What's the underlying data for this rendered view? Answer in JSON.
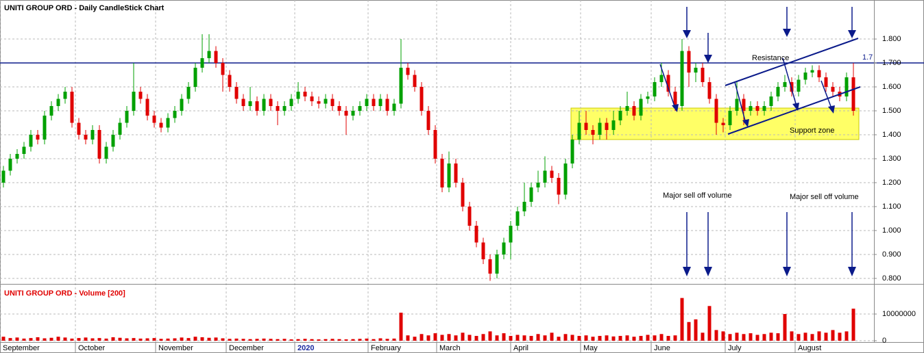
{
  "chart_data": [
    {
      "type": "candlestick",
      "title": "UNITI GROUP ORD - Daily CandleStick Chart",
      "up_color": "#00a000",
      "down_color": "#e00000",
      "open": [
        1.2,
        1.25,
        1.3,
        1.32,
        1.35,
        1.4,
        1.38,
        1.48,
        1.52,
        1.55,
        1.58,
        1.45,
        1.4,
        1.38,
        1.42,
        1.3,
        1.35,
        1.4,
        1.45,
        1.5,
        1.58,
        1.55,
        1.48,
        1.45,
        1.43,
        1.47,
        1.5,
        1.55,
        1.6,
        1.68,
        1.72,
        1.75,
        1.7,
        1.65,
        1.6,
        1.55,
        1.52,
        1.54,
        1.5,
        1.55,
        1.52,
        1.5,
        1.52,
        1.55,
        1.58,
        1.56,
        1.54,
        1.53,
        1.55,
        1.52,
        1.5,
        1.48,
        1.5,
        1.52,
        1.55,
        1.52,
        1.55,
        1.5,
        1.53,
        1.68,
        1.65,
        1.6,
        1.5,
        1.42,
        1.3,
        1.18,
        1.28,
        1.2,
        1.1,
        1.02,
        0.95,
        0.88,
        0.82,
        0.9,
        0.95,
        1.02,
        1.08,
        1.12,
        1.18,
        1.2,
        1.25,
        1.22,
        1.15,
        1.28,
        1.38,
        1.45,
        1.42,
        1.4,
        1.45,
        1.42,
        1.46,
        1.5,
        1.52,
        1.48,
        1.55,
        1.56,
        1.62,
        1.65,
        1.58,
        1.52,
        1.75,
        1.66,
        1.68,
        1.62,
        1.55,
        1.45,
        1.44,
        1.5,
        1.55,
        1.5,
        1.52,
        1.5,
        1.52,
        1.56,
        1.6,
        1.62,
        1.58,
        1.63,
        1.66,
        1.67,
        1.64,
        1.6,
        1.58,
        1.56,
        1.64
      ],
      "high": [
        1.27,
        1.32,
        1.34,
        1.37,
        1.42,
        1.42,
        1.5,
        1.54,
        1.57,
        1.6,
        1.6,
        1.47,
        1.42,
        1.44,
        1.44,
        1.37,
        1.42,
        1.47,
        1.52,
        1.7,
        1.6,
        1.57,
        1.5,
        1.47,
        1.49,
        1.52,
        1.57,
        1.62,
        1.7,
        1.82,
        1.82,
        1.77,
        1.72,
        1.67,
        1.62,
        1.57,
        1.6,
        1.56,
        1.57,
        1.57,
        1.54,
        1.54,
        1.57,
        1.62,
        1.6,
        1.58,
        1.56,
        1.57,
        1.57,
        1.54,
        1.52,
        1.52,
        1.54,
        1.57,
        1.57,
        1.57,
        1.57,
        1.55,
        1.8,
        1.7,
        1.67,
        1.62,
        1.52,
        1.44,
        1.32,
        1.33,
        1.3,
        1.22,
        1.12,
        1.04,
        0.97,
        0.9,
        0.92,
        0.97,
        1.04,
        1.1,
        1.2,
        1.2,
        1.25,
        1.31,
        1.27,
        1.24,
        1.3,
        1.4,
        1.5,
        1.5,
        1.44,
        1.47,
        1.47,
        1.5,
        1.52,
        1.58,
        1.54,
        1.57,
        1.58,
        1.64,
        1.7,
        1.67,
        1.6,
        1.8,
        1.77,
        1.7,
        1.7,
        1.64,
        1.57,
        1.47,
        1.52,
        1.62,
        1.57,
        1.54,
        1.54,
        1.54,
        1.58,
        1.62,
        1.65,
        1.64,
        1.65,
        1.68,
        1.69,
        1.69,
        1.66,
        1.62,
        1.6,
        1.66,
        1.7
      ],
      "low": [
        1.18,
        1.23,
        1.28,
        1.3,
        1.33,
        1.36,
        1.36,
        1.46,
        1.5,
        1.53,
        1.43,
        1.38,
        1.36,
        1.36,
        1.28,
        1.28,
        1.33,
        1.38,
        1.43,
        1.48,
        1.53,
        1.46,
        1.43,
        1.41,
        1.41,
        1.45,
        1.48,
        1.53,
        1.58,
        1.66,
        1.7,
        1.68,
        1.58,
        1.58,
        1.53,
        1.5,
        1.5,
        1.48,
        1.48,
        1.5,
        1.44,
        1.48,
        1.5,
        1.53,
        1.54,
        1.52,
        1.51,
        1.51,
        1.5,
        1.48,
        1.4,
        1.46,
        1.48,
        1.5,
        1.5,
        1.5,
        1.48,
        1.48,
        1.51,
        1.63,
        1.58,
        1.48,
        1.4,
        1.28,
        1.16,
        1.16,
        1.18,
        1.08,
        1.0,
        0.93,
        0.86,
        0.79,
        0.8,
        0.88,
        0.88,
        1.0,
        1.06,
        1.1,
        1.16,
        1.18,
        1.2,
        1.11,
        1.13,
        1.26,
        1.36,
        1.4,
        1.36,
        1.38,
        1.38,
        1.4,
        1.44,
        1.48,
        1.46,
        1.46,
        1.53,
        1.54,
        1.6,
        1.56,
        1.5,
        1.5,
        1.6,
        1.62,
        1.6,
        1.53,
        1.4,
        1.41,
        1.42,
        1.48,
        1.44,
        1.48,
        1.48,
        1.48,
        1.5,
        1.54,
        1.58,
        1.56,
        1.56,
        1.61,
        1.64,
        1.62,
        1.58,
        1.56,
        1.54,
        1.54,
        1.48
      ],
      "close": [
        1.25,
        1.3,
        1.32,
        1.35,
        1.4,
        1.38,
        1.48,
        1.52,
        1.55,
        1.58,
        1.45,
        1.4,
        1.38,
        1.42,
        1.3,
        1.35,
        1.4,
        1.45,
        1.5,
        1.58,
        1.55,
        1.48,
        1.45,
        1.43,
        1.47,
        1.5,
        1.55,
        1.6,
        1.68,
        1.72,
        1.75,
        1.7,
        1.65,
        1.6,
        1.55,
        1.52,
        1.54,
        1.5,
        1.55,
        1.52,
        1.5,
        1.52,
        1.55,
        1.58,
        1.56,
        1.54,
        1.53,
        1.55,
        1.52,
        1.5,
        1.48,
        1.5,
        1.52,
        1.55,
        1.52,
        1.55,
        1.5,
        1.53,
        1.68,
        1.65,
        1.6,
        1.5,
        1.42,
        1.3,
        1.18,
        1.28,
        1.2,
        1.1,
        1.02,
        0.95,
        0.88,
        0.82,
        0.9,
        0.95,
        1.02,
        1.08,
        1.12,
        1.18,
        1.2,
        1.25,
        1.22,
        1.15,
        1.28,
        1.38,
        1.45,
        1.42,
        1.4,
        1.45,
        1.42,
        1.46,
        1.5,
        1.52,
        1.48,
        1.55,
        1.56,
        1.62,
        1.65,
        1.58,
        1.52,
        1.75,
        1.66,
        1.68,
        1.62,
        1.55,
        1.45,
        1.44,
        1.5,
        1.55,
        1.5,
        1.52,
        1.5,
        1.52,
        1.56,
        1.6,
        1.62,
        1.58,
        1.63,
        1.66,
        1.67,
        1.64,
        1.6,
        1.58,
        1.56,
        1.64,
        1.5
      ],
      "ylim": [
        0.777,
        1.963
      ],
      "yticks": [
        {
          "value": 0.8,
          "label": "0.800"
        },
        {
          "value": 0.9,
          "label": "0.900"
        },
        {
          "value": 1.0,
          "label": "1.000"
        },
        {
          "value": 1.1,
          "label": "1.100"
        },
        {
          "value": 1.2,
          "label": "1.200"
        },
        {
          "value": 1.3,
          "label": "1.300"
        },
        {
          "value": 1.4,
          "label": "1.400"
        },
        {
          "value": 1.5,
          "label": "1.500"
        },
        {
          "value": 1.6,
          "label": "1.600"
        },
        {
          "value": 1.7,
          "label": "1.700"
        },
        {
          "value": 1.8,
          "label": "1.800"
        }
      ],
      "xlim": [
        -0.5,
        127
      ],
      "xticks": [
        {
          "value": -0.5,
          "label": "September"
        },
        {
          "value": 10.5,
          "label": "October"
        },
        {
          "value": 22.2,
          "label": "November"
        },
        {
          "value": 32.5,
          "label": "December"
        },
        {
          "value": 42.5,
          "label": "2020"
        },
        {
          "value": 53.2,
          "label": "February"
        },
        {
          "value": 63.2,
          "label": "March"
        },
        {
          "value": 74.0,
          "label": "April"
        },
        {
          "value": 84.2,
          "label": "May"
        },
        {
          "value": 94.5,
          "label": "June"
        },
        {
          "value": 105.3,
          "label": "July"
        },
        {
          "value": 115.5,
          "label": "August"
        }
      ],
      "grid": true,
      "hline": {
        "value": 1.7,
        "label": "1.7",
        "color": "#0a1a8a"
      },
      "annotations": [
        "Resistance",
        "Support zone",
        "Major sell off volume",
        "Major sell off volume"
      ]
    },
    {
      "type": "bar",
      "title": "UNITI GROUP ORD - Volume [200]",
      "color": "#e00000",
      "values": [
        1500000,
        1000000,
        1200000,
        800000,
        1000000,
        1300000,
        900000,
        1100000,
        1500000,
        1200000,
        800000,
        1000000,
        1200000,
        900000,
        1000000,
        800000,
        1300000,
        1100000,
        900000,
        1000000,
        800000,
        900000,
        1000000,
        700000,
        800000,
        900000,
        1200000,
        1000000,
        1500000,
        1300000,
        1100000,
        1200000,
        900000,
        700000,
        800000,
        700000,
        600000,
        700000,
        800000,
        700000,
        600000,
        700000,
        500000,
        600000,
        700000,
        600000,
        500000,
        600000,
        700000,
        600000,
        500000,
        600000,
        700000,
        800000,
        600000,
        900000,
        700000,
        800000,
        10500000,
        2000000,
        1500000,
        2500000,
        2000000,
        2800000,
        2200000,
        2500000,
        2000000,
        3000000,
        2200000,
        1800000,
        2500000,
        3500000,
        2000000,
        2800000,
        1800000,
        2200000,
        2000000,
        1800000,
        2500000,
        2000000,
        3000000,
        1500000,
        2500000,
        2200000,
        1800000,
        2000000,
        1500000,
        1800000,
        2000000,
        1600000,
        1800000,
        2000000,
        1500000,
        1800000,
        2200000,
        2000000,
        2500000,
        1800000,
        2000000,
        16000000,
        7000000,
        8000000,
        3000000,
        13000000,
        4000000,
        3500000,
        2500000,
        3000000,
        2500000,
        2800000,
        2200000,
        2500000,
        3000000,
        2800000,
        10000000,
        3500000,
        2500000,
        3000000,
        2500000,
        3500000,
        3000000,
        4000000,
        3000000,
        3500000,
        12000000
      ],
      "ylim": [
        -500000,
        20000000
      ],
      "yticks": [
        0,
        10000000
      ]
    }
  ]
}
